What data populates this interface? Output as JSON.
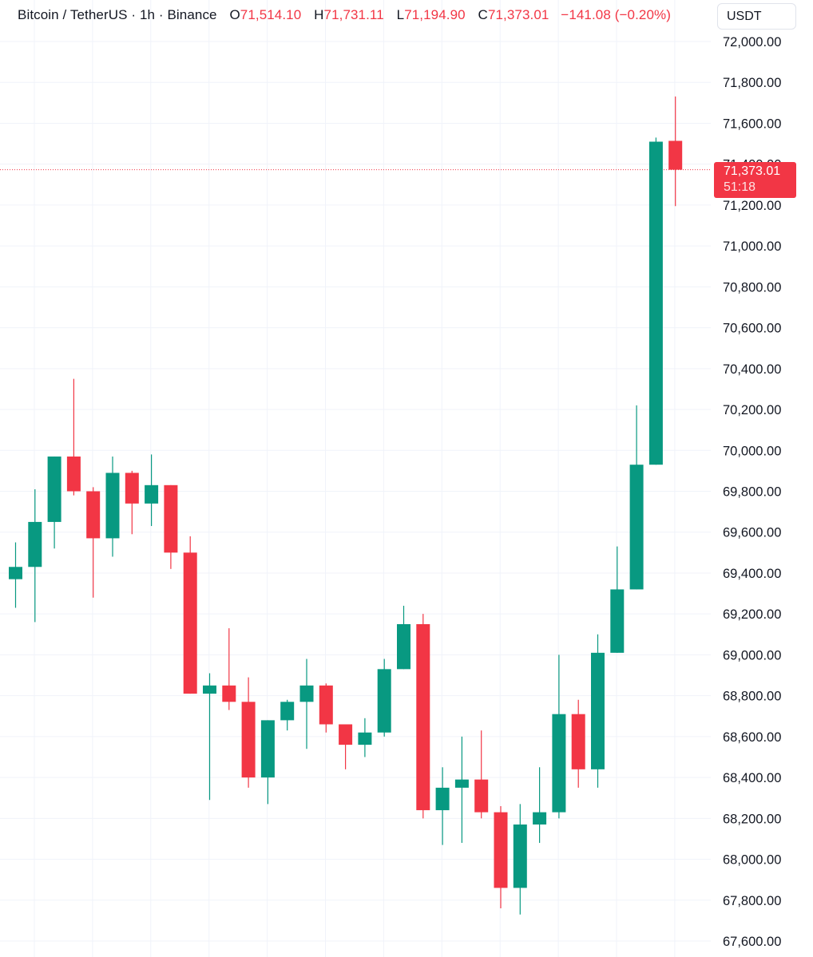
{
  "legend": {
    "symbol": "Bitcoin / TetherUS · 1h · Binance",
    "open_label": "O",
    "open": "71,514.10",
    "high_label": "H",
    "high": "71,731.11",
    "low_label": "L",
    "low": "71,194.90",
    "close_label": "C",
    "close": "71,373.01",
    "change": "−141.08 (−0.20%)"
  },
  "currency": "USDT",
  "last_price": {
    "value": "71,373.01",
    "countdown": "51:18"
  },
  "colors": {
    "up": "#089981",
    "down": "#f23645",
    "grid": "#f0f3fa",
    "text": "#131722"
  },
  "chart_data": {
    "type": "candlestick",
    "ylim": [
      67540,
      72080
    ],
    "y_ticks": [
      72000,
      71800,
      71600,
      71400,
      71200,
      71000,
      70800,
      70600,
      70400,
      70200,
      70000,
      69800,
      69600,
      69400,
      69200,
      69000,
      68800,
      68600,
      68400,
      68200,
      68000,
      67800,
      67600
    ],
    "y_tick_labels": [
      "72,000.00",
      "71,800.00",
      "71,600.00",
      "71,400.00",
      "71,200.00",
      "71,000.00",
      "70,800.00",
      "70,600.00",
      "70,400.00",
      "70,200.00",
      "70,000.00",
      "69,800.00",
      "69,600.00",
      "69,400.00",
      "69,200.00",
      "69,000.00",
      "68,800.00",
      "68,600.00",
      "68,400.00",
      "68,200.00",
      "68,000.00",
      "67,800.00",
      "67,600.00"
    ],
    "last_price": 71373.01,
    "candles": [
      {
        "o": 69370,
        "h": 69550,
        "l": 69230,
        "c": 69430
      },
      {
        "o": 69430,
        "h": 69810,
        "l": 69160,
        "c": 69650
      },
      {
        "o": 69650,
        "h": 69970,
        "l": 69520,
        "c": 69970
      },
      {
        "o": 69970,
        "h": 70350,
        "l": 69780,
        "c": 69800
      },
      {
        "o": 69800,
        "h": 69820,
        "l": 69280,
        "c": 69570
      },
      {
        "o": 69570,
        "h": 69970,
        "l": 69480,
        "c": 69890
      },
      {
        "o": 69890,
        "h": 69900,
        "l": 69590,
        "c": 69740
      },
      {
        "o": 69740,
        "h": 69980,
        "l": 69630,
        "c": 69830
      },
      {
        "o": 69830,
        "h": 69830,
        "l": 69420,
        "c": 69500
      },
      {
        "o": 69500,
        "h": 69580,
        "l": 68810,
        "c": 68810
      },
      {
        "o": 68810,
        "h": 68910,
        "l": 68290,
        "c": 68850
      },
      {
        "o": 68850,
        "h": 69130,
        "l": 68730,
        "c": 68770
      },
      {
        "o": 68770,
        "h": 68890,
        "l": 68350,
        "c": 68400
      },
      {
        "o": 68400,
        "h": 68680,
        "l": 68270,
        "c": 68680
      },
      {
        "o": 68680,
        "h": 68780,
        "l": 68630,
        "c": 68770
      },
      {
        "o": 68770,
        "h": 68980,
        "l": 68540,
        "c": 68850
      },
      {
        "o": 68850,
        "h": 68860,
        "l": 68620,
        "c": 68660
      },
      {
        "o": 68660,
        "h": 68660,
        "l": 68440,
        "c": 68560
      },
      {
        "o": 68560,
        "h": 68690,
        "l": 68500,
        "c": 68620
      },
      {
        "o": 68620,
        "h": 68980,
        "l": 68600,
        "c": 68930
      },
      {
        "o": 68930,
        "h": 69240,
        "l": 68930,
        "c": 69150
      },
      {
        "o": 69150,
        "h": 69200,
        "l": 68200,
        "c": 68240
      },
      {
        "o": 68240,
        "h": 68450,
        "l": 68070,
        "c": 68350
      },
      {
        "o": 68350,
        "h": 68600,
        "l": 68080,
        "c": 68390
      },
      {
        "o": 68390,
        "h": 68630,
        "l": 68200,
        "c": 68230
      },
      {
        "o": 68230,
        "h": 68260,
        "l": 67760,
        "c": 67860
      },
      {
        "o": 67860,
        "h": 68270,
        "l": 67730,
        "c": 68170
      },
      {
        "o": 68170,
        "h": 68450,
        "l": 68080,
        "c": 68230
      },
      {
        "o": 68230,
        "h": 69000,
        "l": 68200,
        "c": 68710
      },
      {
        "o": 68710,
        "h": 68780,
        "l": 68350,
        "c": 68440
      },
      {
        "o": 68440,
        "h": 69100,
        "l": 68350,
        "c": 69010
      },
      {
        "o": 69010,
        "h": 69530,
        "l": 69010,
        "c": 69320
      },
      {
        "o": 69320,
        "h": 70220,
        "l": 69320,
        "c": 69930
      },
      {
        "o": 69930,
        "h": 71530,
        "l": 69930,
        "c": 71510
      },
      {
        "o": 71514.1,
        "h": 71731.11,
        "l": 71194.9,
        "c": 71373.01
      }
    ]
  }
}
